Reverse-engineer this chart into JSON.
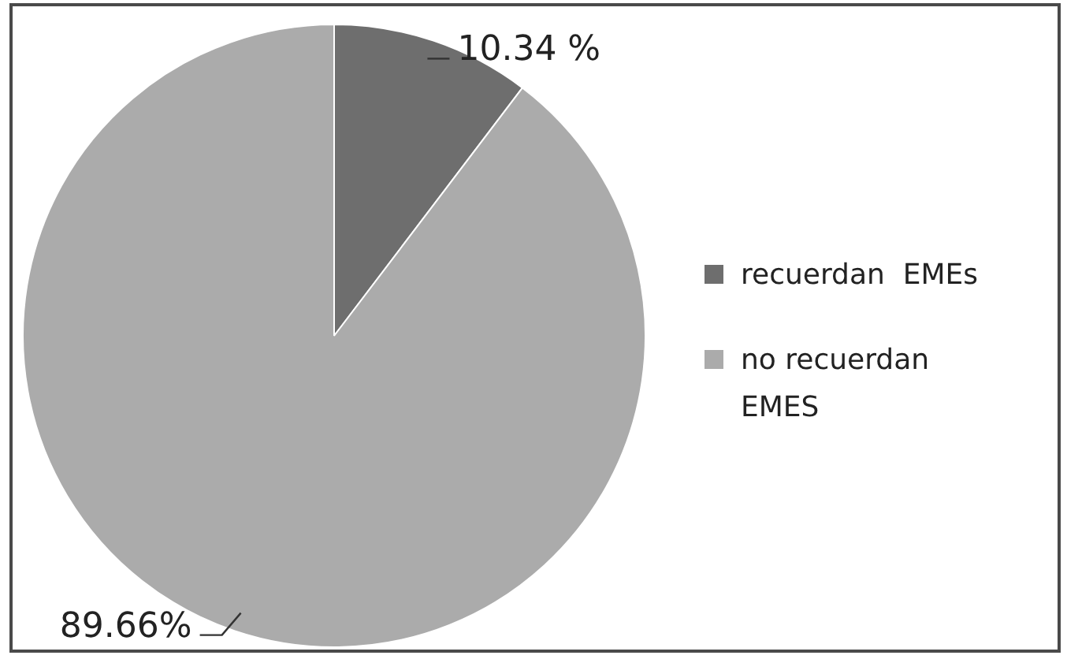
{
  "chart_data": {
    "type": "pie",
    "categories": [
      "recuerdan  EMEs",
      "no recuerdan EMES"
    ],
    "values": [
      10.34,
      89.66
    ],
    "colors": [
      "#6e6e6e",
      "#ababab"
    ],
    "value_labels": [
      "10.34 %",
      "89.66%"
    ],
    "legend": "right"
  }
}
